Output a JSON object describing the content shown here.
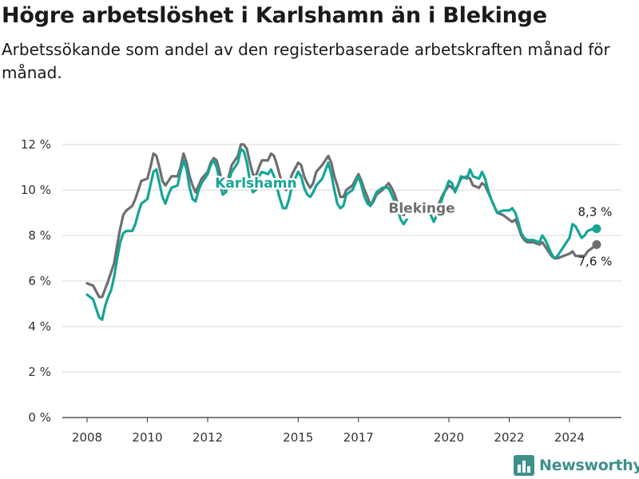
{
  "header": {
    "title": "Högre arbetslöshet i Karlshamn än i Blekinge",
    "subtitle": "Arbetssökande som andel av den registerbaserade arbetskraften månad för månad."
  },
  "brand": {
    "name": "Newsworthy",
    "icon": "bar-chart-logo-icon"
  },
  "colors": {
    "karlshamn": "#14a596",
    "blekinge": "#6e6e70",
    "grid": "#d8d8d8",
    "axis": "#333333"
  },
  "chart_data": {
    "type": "line",
    "title": "Högre arbetslöshet i Karlshamn än i Blekinge",
    "subtitle": "Arbetssökande som andel av den registerbaserade arbetskraften månad för månad.",
    "xlabel": "",
    "ylabel": "",
    "xlim": [
      2007.5,
      2025.5
    ],
    "ylim": [
      0,
      12
    ],
    "y_ticks": [
      {
        "value": 0,
        "label": "0 %"
      },
      {
        "value": 2,
        "label": "2 %"
      },
      {
        "value": 4,
        "label": "4 %"
      },
      {
        "value": 6,
        "label": "6 %"
      },
      {
        "value": 8,
        "label": "8 %"
      },
      {
        "value": 10,
        "label": "10 %"
      },
      {
        "value": 12,
        "label": "12 %"
      }
    ],
    "x_ticks": [
      {
        "value": 2008,
        "label": "2008"
      },
      {
        "value": 2010,
        "label": "2010"
      },
      {
        "value": 2012,
        "label": "2012"
      },
      {
        "value": 2015,
        "label": "2015"
      },
      {
        "value": 2017,
        "label": "2017"
      },
      {
        "value": 2020,
        "label": "2020"
      },
      {
        "value": 2022,
        "label": "2022"
      },
      {
        "value": 2024,
        "label": "2024"
      }
    ],
    "grid": "horizontal",
    "legend": "inline labels",
    "series": [
      {
        "name": "Blekinge",
        "color": "#6e6e70",
        "end_label": "7,6 %",
        "points": [
          [
            2008.0,
            5.9
          ],
          [
            2008.2,
            5.8
          ],
          [
            2008.4,
            5.3
          ],
          [
            2008.5,
            5.3
          ],
          [
            2008.7,
            6.0
          ],
          [
            2008.8,
            6.4
          ],
          [
            2008.9,
            6.8
          ],
          [
            2009.0,
            7.6
          ],
          [
            2009.1,
            8.3
          ],
          [
            2009.2,
            8.9
          ],
          [
            2009.3,
            9.1
          ],
          [
            2009.5,
            9.3
          ],
          [
            2009.6,
            9.6
          ],
          [
            2009.7,
            10.0
          ],
          [
            2009.8,
            10.4
          ],
          [
            2010.0,
            10.5
          ],
          [
            2010.1,
            11.0
          ],
          [
            2010.2,
            11.6
          ],
          [
            2010.3,
            11.5
          ],
          [
            2010.4,
            11.0
          ],
          [
            2010.5,
            10.4
          ],
          [
            2010.6,
            10.2
          ],
          [
            2010.7,
            10.4
          ],
          [
            2010.8,
            10.6
          ],
          [
            2011.0,
            10.6
          ],
          [
            2011.1,
            11.0
          ],
          [
            2011.2,
            11.6
          ],
          [
            2011.3,
            11.2
          ],
          [
            2011.4,
            10.6
          ],
          [
            2011.5,
            10.2
          ],
          [
            2011.6,
            9.9
          ],
          [
            2011.7,
            10.2
          ],
          [
            2011.8,
            10.5
          ],
          [
            2012.0,
            10.8
          ],
          [
            2012.1,
            11.2
          ],
          [
            2012.2,
            11.4
          ],
          [
            2012.3,
            11.3
          ],
          [
            2012.4,
            10.8
          ],
          [
            2012.5,
            10.2
          ],
          [
            2012.6,
            9.9
          ],
          [
            2012.7,
            10.6
          ],
          [
            2012.8,
            11.1
          ],
          [
            2013.0,
            11.5
          ],
          [
            2013.1,
            12.0
          ],
          [
            2013.2,
            12.0
          ],
          [
            2013.3,
            11.8
          ],
          [
            2013.4,
            11.2
          ],
          [
            2013.5,
            10.7
          ],
          [
            2013.6,
            10.6
          ],
          [
            2013.7,
            11.0
          ],
          [
            2013.8,
            11.3
          ],
          [
            2014.0,
            11.3
          ],
          [
            2014.1,
            11.6
          ],
          [
            2014.2,
            11.5
          ],
          [
            2014.3,
            11.1
          ],
          [
            2014.4,
            10.6
          ],
          [
            2014.5,
            10.2
          ],
          [
            2014.6,
            10.0
          ],
          [
            2014.7,
            10.3
          ],
          [
            2014.8,
            10.7
          ],
          [
            2015.0,
            11.2
          ],
          [
            2015.1,
            11.1
          ],
          [
            2015.2,
            10.6
          ],
          [
            2015.3,
            10.3
          ],
          [
            2015.4,
            10.1
          ],
          [
            2015.5,
            10.3
          ],
          [
            2015.6,
            10.8
          ],
          [
            2015.8,
            11.1
          ],
          [
            2016.0,
            11.5
          ],
          [
            2016.1,
            11.2
          ],
          [
            2016.2,
            10.6
          ],
          [
            2016.3,
            10.2
          ],
          [
            2016.4,
            9.7
          ],
          [
            2016.5,
            9.7
          ],
          [
            2016.6,
            10.0
          ],
          [
            2016.8,
            10.2
          ],
          [
            2017.0,
            10.7
          ],
          [
            2017.1,
            10.4
          ],
          [
            2017.2,
            10.0
          ],
          [
            2017.3,
            9.7
          ],
          [
            2017.4,
            9.3
          ],
          [
            2017.5,
            9.5
          ],
          [
            2017.6,
            9.8
          ],
          [
            2017.8,
            10.0
          ],
          [
            2018.0,
            10.3
          ],
          [
            2018.1,
            10.1
          ],
          [
            2018.2,
            9.8
          ],
          [
            2018.3,
            9.4
          ],
          [
            2018.4,
            9.0
          ],
          [
            2018.5,
            8.9
          ],
          [
            2018.6,
            9.1
          ],
          [
            2019.6,
            9.2
          ],
          [
            2019.7,
            9.5
          ],
          [
            2019.8,
            9.8
          ],
          [
            2020.0,
            10.2
          ],
          [
            2020.1,
            10.1
          ],
          [
            2020.2,
            10.0
          ],
          [
            2020.3,
            10.2
          ],
          [
            2020.4,
            10.5
          ],
          [
            2020.6,
            10.6
          ],
          [
            2020.7,
            10.5
          ],
          [
            2020.8,
            10.2
          ],
          [
            2021.0,
            10.1
          ],
          [
            2021.1,
            10.3
          ],
          [
            2021.2,
            10.2
          ],
          [
            2021.3,
            9.9
          ],
          [
            2021.4,
            9.6
          ],
          [
            2021.5,
            9.3
          ],
          [
            2021.6,
            9.0
          ],
          [
            2021.8,
            8.9
          ],
          [
            2022.0,
            8.7
          ],
          [
            2022.1,
            8.6
          ],
          [
            2022.2,
            8.7
          ],
          [
            2022.3,
            8.4
          ],
          [
            2022.4,
            8.0
          ],
          [
            2022.5,
            7.8
          ],
          [
            2022.6,
            7.7
          ],
          [
            2022.8,
            7.7
          ],
          [
            2023.0,
            7.6
          ],
          [
            2023.1,
            7.7
          ],
          [
            2023.2,
            7.5
          ],
          [
            2023.3,
            7.3
          ],
          [
            2023.4,
            7.1
          ],
          [
            2023.5,
            7.0
          ],
          [
            2023.6,
            7.0
          ],
          [
            2023.8,
            7.1
          ],
          [
            2024.0,
            7.2
          ],
          [
            2024.1,
            7.3
          ],
          [
            2024.2,
            7.1
          ],
          [
            2024.5,
            7.1
          ],
          [
            2024.6,
            7.3
          ],
          [
            2024.8,
            7.5
          ],
          [
            2024.9,
            7.6
          ]
        ]
      },
      {
        "name": "Karlshamn",
        "color": "#14a596",
        "end_label": "8,3 %",
        "points": [
          [
            2008.0,
            5.4
          ],
          [
            2008.2,
            5.2
          ],
          [
            2008.3,
            4.8
          ],
          [
            2008.4,
            4.4
          ],
          [
            2008.5,
            4.3
          ],
          [
            2008.6,
            4.9
          ],
          [
            2008.7,
            5.3
          ],
          [
            2008.8,
            5.6
          ],
          [
            2008.9,
            6.2
          ],
          [
            2009.0,
            7.0
          ],
          [
            2009.1,
            7.7
          ],
          [
            2009.2,
            8.1
          ],
          [
            2009.3,
            8.2
          ],
          [
            2009.5,
            8.2
          ],
          [
            2009.6,
            8.5
          ],
          [
            2009.7,
            9.0
          ],
          [
            2009.8,
            9.4
          ],
          [
            2010.0,
            9.6
          ],
          [
            2010.1,
            10.2
          ],
          [
            2010.2,
            10.8
          ],
          [
            2010.3,
            10.9
          ],
          [
            2010.4,
            10.3
          ],
          [
            2010.5,
            9.7
          ],
          [
            2010.6,
            9.4
          ],
          [
            2010.7,
            9.8
          ],
          [
            2010.8,
            10.1
          ],
          [
            2011.0,
            10.2
          ],
          [
            2011.1,
            10.8
          ],
          [
            2011.2,
            11.3
          ],
          [
            2011.3,
            10.9
          ],
          [
            2011.4,
            10.1
          ],
          [
            2011.5,
            9.6
          ],
          [
            2011.6,
            9.5
          ],
          [
            2011.7,
            10.0
          ],
          [
            2011.8,
            10.3
          ],
          [
            2012.0,
            10.7
          ],
          [
            2012.1,
            11.1
          ],
          [
            2012.2,
            11.3
          ],
          [
            2012.3,
            11.0
          ],
          [
            2012.4,
            10.4
          ],
          [
            2012.5,
            9.8
          ],
          [
            2012.6,
            9.9
          ],
          [
            2012.7,
            10.4
          ],
          [
            2012.8,
            10.8
          ],
          [
            2013.0,
            11.2
          ],
          [
            2013.1,
            11.8
          ],
          [
            2013.2,
            11.7
          ],
          [
            2013.3,
            11.2
          ],
          [
            2013.4,
            10.4
          ],
          [
            2013.5,
            9.9
          ],
          [
            2013.6,
            10.0
          ],
          [
            2013.7,
            10.6
          ],
          [
            2013.8,
            10.8
          ],
          [
            2014.0,
            10.7
          ],
          [
            2014.1,
            10.9
          ],
          [
            2014.2,
            10.6
          ],
          [
            2014.3,
            10.1
          ],
          [
            2014.4,
            9.6
          ],
          [
            2014.5,
            9.2
          ],
          [
            2014.6,
            9.2
          ],
          [
            2014.7,
            9.6
          ],
          [
            2014.8,
            10.2
          ],
          [
            2015.0,
            10.8
          ],
          [
            2015.1,
            10.6
          ],
          [
            2015.2,
            10.1
          ],
          [
            2015.3,
            9.8
          ],
          [
            2015.4,
            9.7
          ],
          [
            2015.5,
            9.9
          ],
          [
            2015.6,
            10.2
          ],
          [
            2015.8,
            10.5
          ],
          [
            2016.0,
            11.2
          ],
          [
            2016.1,
            10.7
          ],
          [
            2016.2,
            10.0
          ],
          [
            2016.3,
            9.4
          ],
          [
            2016.4,
            9.2
          ],
          [
            2016.5,
            9.3
          ],
          [
            2016.6,
            9.8
          ],
          [
            2016.8,
            10.0
          ],
          [
            2017.0,
            10.6
          ],
          [
            2017.1,
            10.2
          ],
          [
            2017.2,
            9.7
          ],
          [
            2017.3,
            9.4
          ],
          [
            2017.4,
            9.3
          ],
          [
            2017.5,
            9.6
          ],
          [
            2017.6,
            9.9
          ],
          [
            2017.8,
            10.1
          ],
          [
            2018.0,
            10.1
          ],
          [
            2018.1,
            9.8
          ],
          [
            2018.2,
            9.5
          ],
          [
            2018.3,
            9.2
          ],
          [
            2018.4,
            8.7
          ],
          [
            2018.5,
            8.5
          ],
          [
            2018.6,
            8.7
          ],
          [
            2019.4,
            8.9
          ],
          [
            2019.5,
            8.6
          ],
          [
            2019.6,
            8.9
          ],
          [
            2019.7,
            9.3
          ],
          [
            2019.8,
            9.7
          ],
          [
            2020.0,
            10.4
          ],
          [
            2020.1,
            10.3
          ],
          [
            2020.2,
            9.9
          ],
          [
            2020.3,
            10.2
          ],
          [
            2020.4,
            10.6
          ],
          [
            2020.6,
            10.5
          ],
          [
            2020.7,
            10.9
          ],
          [
            2020.8,
            10.6
          ],
          [
            2021.0,
            10.5
          ],
          [
            2021.1,
            10.8
          ],
          [
            2021.2,
            10.5
          ],
          [
            2021.3,
            10.0
          ],
          [
            2021.4,
            9.6
          ],
          [
            2021.5,
            9.3
          ],
          [
            2021.6,
            9.0
          ],
          [
            2021.8,
            9.1
          ],
          [
            2022.0,
            9.1
          ],
          [
            2022.1,
            9.2
          ],
          [
            2022.2,
            9.0
          ],
          [
            2022.3,
            8.6
          ],
          [
            2022.4,
            8.1
          ],
          [
            2022.5,
            7.9
          ],
          [
            2022.6,
            7.8
          ],
          [
            2022.8,
            7.8
          ],
          [
            2023.0,
            7.7
          ],
          [
            2023.1,
            8.0
          ],
          [
            2023.2,
            7.8
          ],
          [
            2023.3,
            7.5
          ],
          [
            2023.4,
            7.2
          ],
          [
            2023.5,
            7.0
          ],
          [
            2023.6,
            7.1
          ],
          [
            2023.8,
            7.5
          ],
          [
            2024.0,
            7.9
          ],
          [
            2024.1,
            8.5
          ],
          [
            2024.2,
            8.4
          ],
          [
            2024.4,
            7.9
          ],
          [
            2024.5,
            8.0
          ],
          [
            2024.6,
            8.2
          ],
          [
            2024.8,
            8.3
          ],
          [
            2024.9,
            8.3
          ]
        ]
      }
    ],
    "inline_labels": [
      {
        "text": "Karlshamn",
        "series": "Karlshamn",
        "x": 2013.6,
        "y": 10.1
      },
      {
        "text": "Blekinge",
        "series": "Blekinge",
        "x": 2019.1,
        "y": 9.0
      }
    ]
  }
}
